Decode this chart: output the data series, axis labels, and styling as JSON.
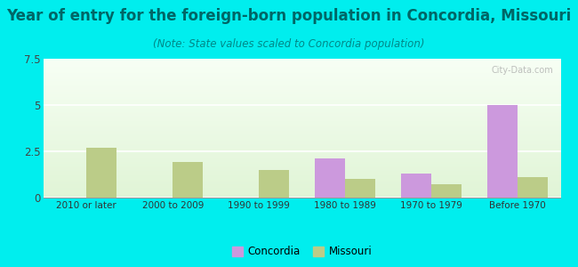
{
  "title": "Year of entry for the foreign-born population in Concordia, Missouri",
  "subtitle": "(Note: State values scaled to Concordia population)",
  "categories": [
    "2010 or later",
    "2000 to 2009",
    "1990 to 1999",
    "1980 to 1989",
    "1970 to 1979",
    "Before 1970"
  ],
  "concordia_values": [
    0,
    0,
    0,
    2.1,
    1.3,
    5.0
  ],
  "missouri_values": [
    2.7,
    1.9,
    1.5,
    1.0,
    0.7,
    1.1
  ],
  "concordia_color": "#cc99dd",
  "missouri_color": "#bbcc88",
  "ylim": [
    0,
    7.5
  ],
  "yticks": [
    0,
    2.5,
    5,
    7.5
  ],
  "bg_color": "#00eeee",
  "title_color": "#006666",
  "subtitle_color": "#008888",
  "title_fontsize": 12,
  "subtitle_fontsize": 8.5,
  "bar_width": 0.35,
  "legend_concordia": "Concordia",
  "legend_missouri": "Missouri",
  "watermark": "City-Data.com"
}
